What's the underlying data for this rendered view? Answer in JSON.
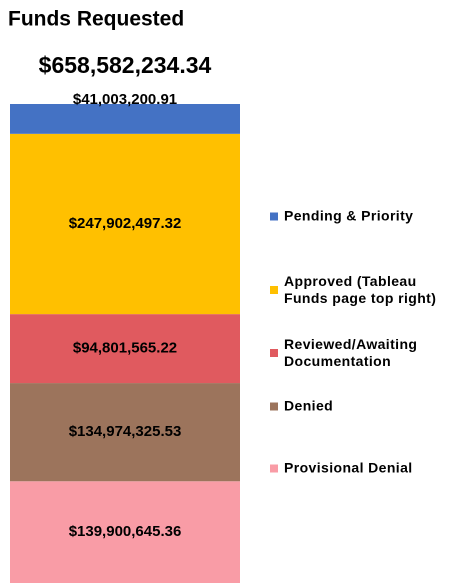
{
  "chart_data": {
    "type": "stacked-bar",
    "title": "Funds Requested",
    "subtitle": "$658,582,234.34",
    "categories": [
      null
    ],
    "series": [
      {
        "name": "Pending & Priority",
        "color": "#4472c4",
        "values": [
          41003200.91
        ],
        "value_labels": [
          "$41,003,200.91"
        ]
      },
      {
        "name": "Approved (Tableau Funds page top right)",
        "color": "#ffc000",
        "values": [
          247902497.32
        ],
        "value_labels": [
          "$247,902,497.32"
        ]
      },
      {
        "name": "Reviewed/Awaiting Documentation",
        "color": "#e05a5f",
        "values": [
          94801565.22
        ],
        "value_labels": [
          "$94,801,565.22"
        ]
      },
      {
        "name": "Denied",
        "color": "#9c745c",
        "values": [
          134974325.53
        ],
        "value_labels": [
          "$134,974,325.53"
        ]
      },
      {
        "name": "Provisional Denial",
        "color": "#f99ca6",
        "values": [
          139900645.36
        ],
        "value_labels": [
          "$139,900,645.36"
        ]
      }
    ]
  }
}
